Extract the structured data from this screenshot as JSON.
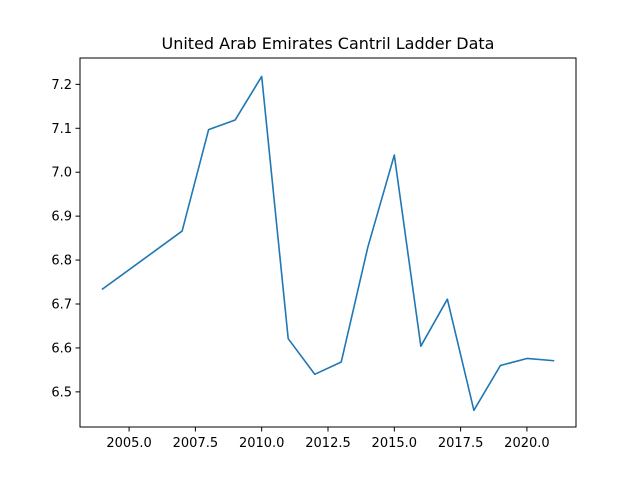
{
  "chart_data": {
    "type": "line",
    "title": "United Arab Emirates Cantril Ladder Data",
    "xlabel": "",
    "ylabel": "",
    "xlim": [
      2003.15,
      2021.85
    ],
    "ylim": [
      6.42,
      7.26
    ],
    "x_ticks": [
      "2005.0",
      "2007.5",
      "2010.0",
      "2012.5",
      "2015.0",
      "2017.5",
      "2020.0"
    ],
    "x_tick_values": [
      2005.0,
      2007.5,
      2010.0,
      2012.5,
      2015.0,
      2017.5,
      2020.0
    ],
    "y_ticks": [
      "6.5",
      "6.6",
      "6.7",
      "6.8",
      "6.9",
      "7.0",
      "7.1",
      "7.2"
    ],
    "y_tick_values": [
      6.5,
      6.6,
      6.7,
      6.8,
      6.9,
      7.0,
      7.1,
      7.2
    ],
    "grid": false,
    "legend": "none",
    "series": [
      {
        "color": "#1f77b4",
        "x": [
          2004,
          2007,
          2008,
          2009,
          2010,
          2011,
          2012,
          2013,
          2014,
          2015,
          2016,
          2017,
          2018,
          2019,
          2020,
          2021
        ],
        "y": [
          6.734,
          6.866,
          7.097,
          7.119,
          7.218,
          6.621,
          6.54,
          6.568,
          6.829,
          7.039,
          6.604,
          6.711,
          6.458,
          6.56,
          6.576,
          6.571
        ]
      }
    ]
  }
}
